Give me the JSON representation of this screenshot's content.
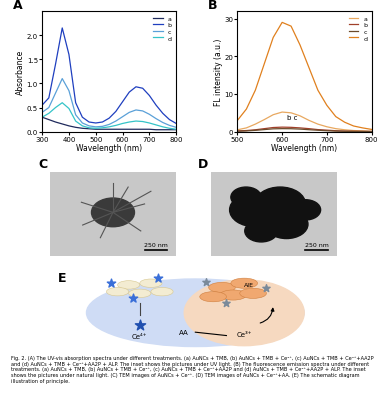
{
  "chart_data": [
    {
      "type": "line",
      "panel_label": "A",
      "x_label": "Wavelength (nm)",
      "y_label": "Absorbance",
      "x": [
        300,
        325,
        350,
        375,
        400,
        425,
        450,
        475,
        500,
        525,
        550,
        575,
        600,
        625,
        650,
        675,
        700,
        725,
        750,
        775,
        800
      ],
      "series": [
        {
          "name": "a",
          "color": "#1f2a5c",
          "values": [
            0.3,
            0.25,
            0.2,
            0.16,
            0.12,
            0.09,
            0.07,
            0.06,
            0.05,
            0.05,
            0.05,
            0.05,
            0.05,
            0.05,
            0.05,
            0.05,
            0.05,
            0.04,
            0.04,
            0.04,
            0.04
          ]
        },
        {
          "name": "b",
          "color": "#1f3fbf",
          "values": [
            0.55,
            0.7,
            1.4,
            2.15,
            1.6,
            0.6,
            0.3,
            0.2,
            0.18,
            0.2,
            0.28,
            0.42,
            0.62,
            0.82,
            0.93,
            0.9,
            0.75,
            0.55,
            0.38,
            0.25,
            0.17
          ]
        },
        {
          "name": "c",
          "color": "#5aa0d8",
          "values": [
            0.4,
            0.5,
            0.8,
            1.1,
            0.85,
            0.35,
            0.18,
            0.12,
            0.1,
            0.11,
            0.15,
            0.22,
            0.31,
            0.4,
            0.45,
            0.43,
            0.36,
            0.27,
            0.19,
            0.13,
            0.09
          ]
        },
        {
          "name": "d",
          "color": "#35c4c8",
          "values": [
            0.3,
            0.38,
            0.5,
            0.6,
            0.48,
            0.22,
            0.12,
            0.08,
            0.07,
            0.08,
            0.1,
            0.13,
            0.17,
            0.2,
            0.22,
            0.21,
            0.18,
            0.14,
            0.1,
            0.07,
            0.05
          ]
        }
      ],
      "xlim": [
        300,
        800
      ],
      "ylim": [
        0,
        2.5
      ],
      "xticks": [
        300,
        400,
        500,
        600,
        700,
        800
      ],
      "yticks": [
        {
          "value": 0,
          "label": "0.0"
        },
        {
          "value": 0.5,
          "label": "0.5"
        },
        {
          "value": 1,
          "label": "1.0"
        },
        {
          "value": 1.5,
          "label": "1.5"
        },
        {
          "value": 2,
          "label": "2.0"
        }
      ],
      "legend": "upper right"
    },
    {
      "type": "line",
      "panel_label": "B",
      "x_label": "Wavelength (nm)",
      "y_label": "FL intensity (a.u.)",
      "x": [
        500,
        520,
        540,
        560,
        580,
        600,
        620,
        640,
        660,
        680,
        700,
        720,
        740,
        760,
        780,
        800
      ],
      "series": [
        {
          "name": "a",
          "color": "#e8a860",
          "values": [
            0.5,
            1,
            2,
            3.2,
            4.5,
            5.2,
            5,
            4.2,
            3,
            2,
            1.3,
            0.8,
            0.5,
            0.3,
            0.2,
            0.1
          ]
        },
        {
          "name": "b",
          "color": "#a0402a",
          "values": [
            0.2,
            0.3,
            0.5,
            0.8,
            1.1,
            1.2,
            1.15,
            1,
            0.8,
            0.55,
            0.4,
            0.25,
            0.15,
            0.1,
            0.08,
            0.05
          ]
        },
        {
          "name": "c",
          "color": "#6b4a2a",
          "values": [
            0.1,
            0.2,
            0.35,
            0.55,
            0.75,
            0.8,
            0.78,
            0.68,
            0.52,
            0.38,
            0.25,
            0.15,
            0.1,
            0.07,
            0.05,
            0.03
          ]
        },
        {
          "name": "d",
          "color": "#e0801e",
          "values": [
            3,
            6,
            11,
            18,
            25,
            29,
            28,
            23,
            17,
            11,
            7,
            4,
            2.5,
            1.5,
            1,
            0.6
          ]
        }
      ],
      "xlim": [
        500,
        800
      ],
      "ylim": [
        0,
        32
      ],
      "xticks": [
        500,
        600,
        700,
        800
      ],
      "yticks": [
        0,
        10,
        20,
        30
      ],
      "legend": "upper right",
      "annotations": [
        {
          "text": "b c",
          "x": 610,
          "y": 3
        }
      ]
    }
  ],
  "images": [
    {
      "panel_label": "C",
      "scale_bar": "250 nm"
    },
    {
      "panel_label": "D",
      "scale_bar": "250 nm"
    }
  ],
  "schematic": {
    "panel_label": "E",
    "texts": [
      "AIE",
      "Ce⁴⁺",
      "AA",
      "Ce³⁺"
    ]
  },
  "caption": "Fig. 2. (A) The UV-vis absorption spectra under different treatments. (a) AuNCs + TMB, (b) AuNCs + TMB + Ce⁴⁺, (c) AuNCs + TMB + Ce⁴⁺+AA2P and (d) AuNCs + TMB + Ce⁴⁺+AA2P + ALP. The inset shows the pictures under UV light. (B) The fluorescence emission spectra under different treatments. (a) AuNCs + TMB, (b) AuNCs + TMB + Ce⁴⁺, (c) AuNCs + TMB + Ce⁴⁺+AA2P and (d) AuNCs + TMB + Ce⁴⁺+AA2P + ALP. The inset shows the pictures under natural light. (C) TEM images of AuNCs + Ce⁴⁺. (D) TEM images of AuNCs + Ce⁴⁺+AA. (E) The schematic diagram illustration of principle."
}
